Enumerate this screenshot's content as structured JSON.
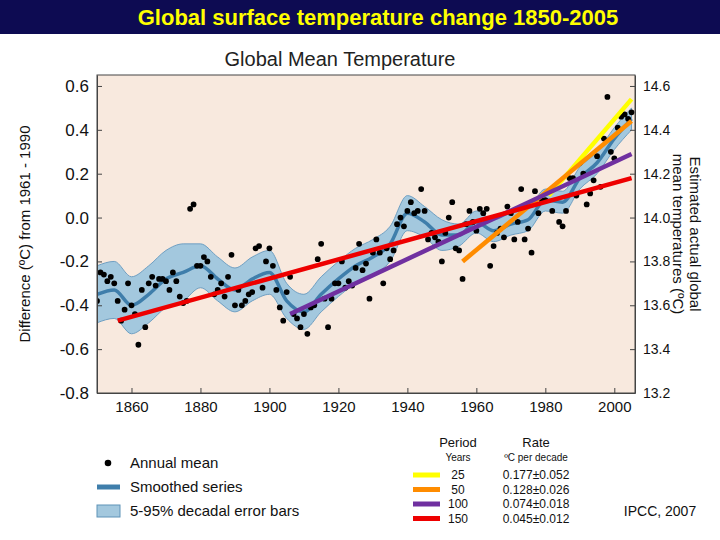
{
  "chart_data": {
    "type": "scatter",
    "suptitle": "Global surface temperature change 1850-2005",
    "title": "Global Mean Temperature",
    "y_label": "Difference (ºC) from 1961 - 1990",
    "y2_label": [
      "Estimated actual global",
      "mean temperatures (ºC)"
    ],
    "source": "IPCC, 2007",
    "table_headers": [
      "Period",
      "Rate"
    ],
    "table_subheaders": [
      "Years",
      "ºC per decade"
    ],
    "xlim": [
      1850,
      2006
    ],
    "xticks": [
      1860,
      1880,
      1900,
      1920,
      1940,
      1960,
      1980,
      2000
    ],
    "ylim": [
      -0.8,
      0.65
    ],
    "yticks": [
      -0.8,
      -0.6,
      -0.4,
      -0.2,
      {
        "value": 0,
        "label": "0.0"
      },
      0.2,
      0.4,
      0.6
    ],
    "y2lim": [
      13.2,
      14.65
    ],
    "y2ticks": [
      13.2,
      13.4,
      13.6,
      13.8,
      {
        "value": 14,
        "label": "14.0"
      },
      14.2,
      14.4,
      14.6
    ],
    "grid": false,
    "x": [
      1850,
      1851,
      1852,
      1853,
      1854,
      1855,
      1856,
      1857,
      1858,
      1859,
      1860,
      1861,
      1862,
      1863,
      1864,
      1865,
      1866,
      1867,
      1868,
      1869,
      1870,
      1871,
      1872,
      1873,
      1874,
      1875,
      1876,
      1877,
      1878,
      1879,
      1880,
      1881,
      1882,
      1883,
      1884,
      1885,
      1886,
      1887,
      1888,
      1889,
      1890,
      1891,
      1892,
      1893,
      1894,
      1895,
      1896,
      1897,
      1898,
      1899,
      1900,
      1901,
      1902,
      1903,
      1904,
      1905,
      1906,
      1907,
      1908,
      1909,
      1910,
      1911,
      1912,
      1913,
      1914,
      1915,
      1916,
      1917,
      1918,
      1919,
      1920,
      1921,
      1922,
      1923,
      1924,
      1925,
      1926,
      1927,
      1928,
      1929,
      1930,
      1931,
      1932,
      1933,
      1934,
      1935,
      1936,
      1937,
      1938,
      1939,
      1940,
      1941,
      1942,
      1943,
      1944,
      1945,
      1946,
      1947,
      1948,
      1949,
      1950,
      1951,
      1952,
      1953,
      1954,
      1955,
      1956,
      1957,
      1958,
      1959,
      1960,
      1961,
      1962,
      1963,
      1964,
      1965,
      1966,
      1967,
      1968,
      1969,
      1970,
      1971,
      1972,
      1973,
      1974,
      1975,
      1976,
      1977,
      1978,
      1979,
      1980,
      1981,
      1982,
      1983,
      1984,
      1985,
      1986,
      1987,
      1988,
      1989,
      1990,
      1991,
      1992,
      1993,
      1994,
      1995,
      1996,
      1997,
      1998,
      1999,
      2000,
      2001,
      2002,
      2003,
      2004,
      2005
    ],
    "series": [
      {
        "name": "Annual mean",
        "type": "scatter",
        "color": "#000000",
        "marker": "circle",
        "values": [
          -0.38,
          -0.25,
          -0.26,
          -0.29,
          -0.27,
          -0.3,
          -0.38,
          -0.47,
          -0.42,
          -0.3,
          -0.4,
          -0.44,
          -0.58,
          -0.33,
          -0.5,
          -0.3,
          -0.27,
          -0.31,
          -0.28,
          -0.28,
          -0.29,
          -0.33,
          -0.25,
          -0.29,
          -0.36,
          -0.39,
          -0.38,
          0.04,
          0.06,
          -0.22,
          -0.22,
          -0.18,
          -0.2,
          -0.27,
          -0.35,
          -0.33,
          -0.3,
          -0.36,
          -0.27,
          -0.17,
          -0.4,
          -0.33,
          -0.4,
          -0.38,
          -0.35,
          -0.34,
          -0.14,
          -0.13,
          -0.32,
          -0.2,
          -0.14,
          -0.22,
          -0.33,
          -0.41,
          -0.47,
          -0.34,
          -0.27,
          -0.44,
          -0.46,
          -0.5,
          -0.44,
          -0.53,
          -0.41,
          -0.4,
          -0.19,
          -0.12,
          -0.37,
          -0.5,
          -0.37,
          -0.3,
          -0.3,
          -0.2,
          -0.32,
          -0.29,
          -0.31,
          -0.23,
          -0.12,
          -0.24,
          -0.21,
          -0.37,
          -0.16,
          -0.1,
          -0.16,
          -0.3,
          -0.14,
          -0.19,
          -0.15,
          -0.03,
          0.0,
          -0.04,
          0.03,
          0.07,
          0.02,
          0.03,
          0.13,
          0.03,
          -0.1,
          -0.07,
          -0.09,
          -0.11,
          -0.2,
          -0.07,
          0.0,
          0.07,
          -0.14,
          -0.15,
          -0.28,
          -0.03,
          0.03,
          -0.02,
          -0.06,
          0.04,
          0.02,
          0.04,
          -0.22,
          -0.13,
          -0.07,
          -0.05,
          -0.09,
          0.05,
          0.02,
          -0.1,
          -0.02,
          0.13,
          -0.1,
          -0.05,
          -0.16,
          0.12,
          0.02,
          0.08,
          0.08,
          0.12,
          0.03,
          0.14,
          -0.02,
          -0.04,
          0.03,
          0.18,
          0.18,
          0.1,
          0.25,
          0.2,
          0.06,
          0.11,
          0.17,
          0.28,
          0.14,
          0.36,
          0.55,
          0.3,
          0.27,
          0.41,
          0.46,
          0.47,
          0.45,
          0.48
        ]
      },
      {
        "name": "Smoothed series",
        "type": "line",
        "color": "#3f7eab",
        "error_band": {
          "name": "5-95% decadal error bars",
          "color": "#a3c8de"
        },
        "x": [
          1850,
          1855,
          1860,
          1865,
          1870,
          1875,
          1880,
          1885,
          1890,
          1895,
          1900,
          1905,
          1910,
          1915,
          1920,
          1925,
          1930,
          1935,
          1940,
          1945,
          1950,
          1955,
          1960,
          1965,
          1970,
          1975,
          1980,
          1985,
          1990,
          1995,
          2000,
          2005
        ],
        "values": [
          -0.35,
          -0.33,
          -0.4,
          -0.35,
          -0.28,
          -0.25,
          -0.22,
          -0.28,
          -0.33,
          -0.28,
          -0.25,
          -0.38,
          -0.43,
          -0.35,
          -0.28,
          -0.22,
          -0.18,
          -0.12,
          0.02,
          -0.02,
          -0.08,
          -0.08,
          -0.02,
          -0.06,
          -0.03,
          -0.01,
          0.08,
          0.07,
          0.18,
          0.25,
          0.36,
          0.45
        ],
        "error": [
          0.13,
          0.13,
          0.13,
          0.13,
          0.13,
          0.13,
          0.1,
          0.1,
          0.1,
          0.1,
          0.1,
          0.08,
          0.08,
          0.08,
          0.08,
          0.08,
          0.08,
          0.08,
          0.08,
          0.07,
          0.07,
          0.05,
          0.05,
          0.05,
          0.05,
          0.05,
          0.05,
          0.05,
          0.05,
          0.05,
          0.05,
          0.05
        ]
      },
      {
        "name": "25",
        "type": "line",
        "color": "#ffff00",
        "rate": "0.177±0.052",
        "x": [
          1981,
          2005
        ],
        "values": [
          0.1,
          0.54
        ]
      },
      {
        "name": "50",
        "type": "line",
        "color": "#ff8c00",
        "rate": "0.128±0.026",
        "x": [
          1956,
          2005
        ],
        "values": [
          -0.2,
          0.44
        ]
      },
      {
        "name": "100",
        "type": "line",
        "color": "#7030a0",
        "rate": "0.074±0.018",
        "x": [
          1906,
          2005
        ],
        "values": [
          -0.44,
          0.29
        ]
      },
      {
        "name": "150",
        "type": "line",
        "color": "#ee0000",
        "rate": "0.045±0.012",
        "x": [
          1856,
          2005
        ],
        "values": [
          -0.47,
          0.18
        ]
      }
    ]
  }
}
